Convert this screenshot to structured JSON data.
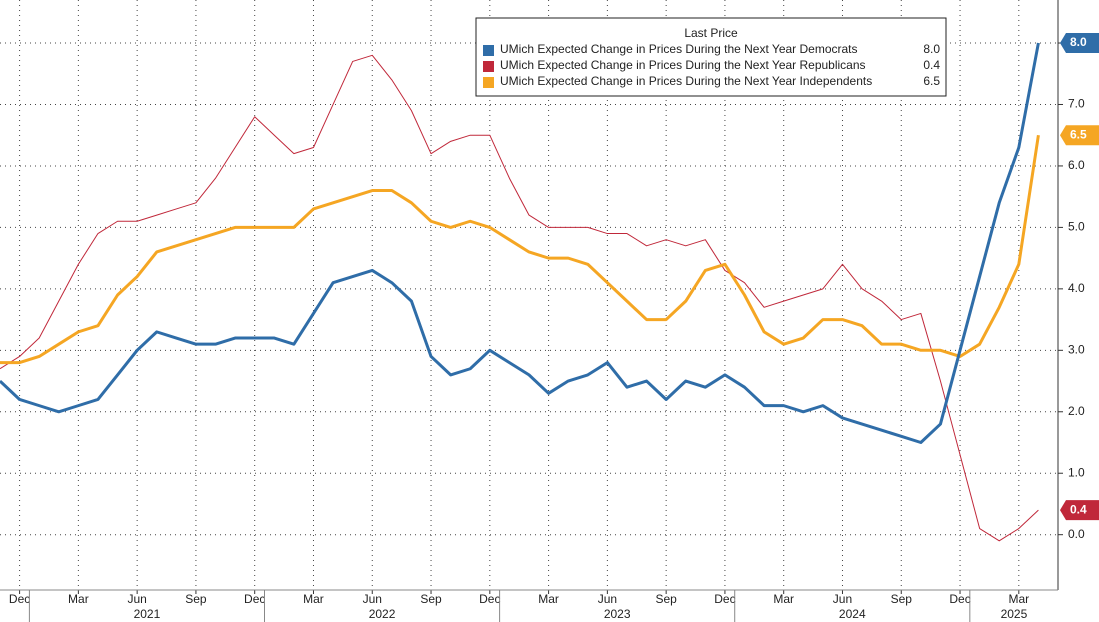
{
  "chart_data": {
    "type": "line",
    "legend_title": "Last Price",
    "x": [
      "2020-11",
      "2020-12",
      "2021-01",
      "2021-02",
      "2021-03",
      "2021-04",
      "2021-05",
      "2021-06",
      "2021-07",
      "2021-08",
      "2021-09",
      "2021-10",
      "2021-11",
      "2021-12",
      "2022-01",
      "2022-02",
      "2022-03",
      "2022-04",
      "2022-05",
      "2022-06",
      "2022-07",
      "2022-08",
      "2022-09",
      "2022-10",
      "2022-11",
      "2022-12",
      "2023-01",
      "2023-02",
      "2023-03",
      "2023-04",
      "2023-05",
      "2023-06",
      "2023-07",
      "2023-08",
      "2023-09",
      "2023-10",
      "2023-11",
      "2023-12",
      "2024-01",
      "2024-02",
      "2024-03",
      "2024-04",
      "2024-05",
      "2024-06",
      "2024-07",
      "2024-08",
      "2024-09",
      "2024-10",
      "2024-11",
      "2024-12",
      "2025-01",
      "2025-02",
      "2025-03",
      "2025-04"
    ],
    "series": [
      {
        "name": "UMich Expected Change in Prices During the Next Year Democrats",
        "color": "#2f6da8",
        "width": 3,
        "last_label": "8.0",
        "values": [
          2.5,
          2.2,
          2.1,
          2.0,
          2.1,
          2.2,
          2.6,
          3.0,
          3.3,
          3.2,
          3.1,
          3.1,
          3.2,
          3.2,
          3.2,
          3.1,
          3.6,
          4.1,
          4.2,
          4.3,
          4.1,
          3.8,
          2.9,
          2.6,
          2.7,
          3.0,
          2.8,
          2.6,
          2.3,
          2.5,
          2.6,
          2.8,
          2.4,
          2.5,
          2.2,
          2.5,
          2.4,
          2.6,
          2.4,
          2.1,
          2.1,
          2.0,
          2.1,
          1.9,
          1.8,
          1.7,
          1.6,
          1.5,
          1.8,
          3.0,
          4.2,
          5.4,
          6.3,
          8.0
        ]
      },
      {
        "name": "UMich Expected Change in Prices During the Next Year Republicans",
        "color": "#c0283a",
        "width": 1,
        "last_label": "0.4",
        "values": [
          2.7,
          2.9,
          3.2,
          3.8,
          4.4,
          4.9,
          5.1,
          5.1,
          5.2,
          5.3,
          5.4,
          5.8,
          6.3,
          6.8,
          6.5,
          6.2,
          6.3,
          7.0,
          7.7,
          7.8,
          7.4,
          6.9,
          6.2,
          6.4,
          6.5,
          6.5,
          5.8,
          5.2,
          5.0,
          5.0,
          5.0,
          4.9,
          4.9,
          4.7,
          4.8,
          4.7,
          4.8,
          4.3,
          4.1,
          3.7,
          3.8,
          3.9,
          4.0,
          4.4,
          4.0,
          3.8,
          3.5,
          3.6,
          2.5,
          1.3,
          0.1,
          -0.1,
          0.1,
          0.4
        ]
      },
      {
        "name": "UMich Expected Change in Prices During the Next Year Independents",
        "color": "#f5a623",
        "width": 3,
        "last_label": "6.5",
        "values": [
          2.8,
          2.8,
          2.9,
          3.1,
          3.3,
          3.4,
          3.9,
          4.2,
          4.6,
          4.7,
          4.8,
          4.9,
          5.0,
          5.0,
          5.0,
          5.0,
          5.3,
          5.4,
          5.5,
          5.6,
          5.6,
          5.4,
          5.1,
          5.0,
          5.1,
          5.0,
          4.8,
          4.6,
          4.5,
          4.5,
          4.4,
          4.1,
          3.8,
          3.5,
          3.5,
          3.8,
          4.3,
          4.4,
          3.9,
          3.3,
          3.1,
          3.2,
          3.5,
          3.5,
          3.4,
          3.1,
          3.1,
          3.0,
          3.0,
          2.9,
          3.1,
          3.7,
          4.4,
          6.5
        ]
      }
    ],
    "xlim": [
      "2020-11",
      "2025-05"
    ],
    "xticks": [
      {
        "value": "2020-12",
        "label": "Dec"
      },
      {
        "value": "2021-03",
        "label": "Mar"
      },
      {
        "value": "2021-06",
        "label": "Jun"
      },
      {
        "value": "2021-09",
        "label": "Sep"
      },
      {
        "value": "2021-12",
        "label": "Dec"
      },
      {
        "value": "2022-03",
        "label": "Mar"
      },
      {
        "value": "2022-06",
        "label": "Jun"
      },
      {
        "value": "2022-09",
        "label": "Sep"
      },
      {
        "value": "2022-12",
        "label": "Dec"
      },
      {
        "value": "2023-03",
        "label": "Mar"
      },
      {
        "value": "2023-06",
        "label": "Jun"
      },
      {
        "value": "2023-09",
        "label": "Sep"
      },
      {
        "value": "2023-12",
        "label": "Dec"
      },
      {
        "value": "2024-03",
        "label": "Mar"
      },
      {
        "value": "2024-06",
        "label": "Jun"
      },
      {
        "value": "2024-09",
        "label": "Sep"
      },
      {
        "value": "2024-12",
        "label": "Dec"
      },
      {
        "value": "2025-03",
        "label": "Mar"
      }
    ],
    "year_ticks": [
      2021,
      2022,
      2023,
      2024,
      2025
    ],
    "ylim": [
      -0.9,
      8.7
    ],
    "yticks": [
      {
        "value": 0,
        "label": "0.0"
      },
      {
        "value": 1,
        "label": "1.0"
      },
      {
        "value": 2,
        "label": "2.0"
      },
      {
        "value": 3,
        "label": "3.0"
      },
      {
        "value": 4,
        "label": "4.0"
      },
      {
        "value": 5,
        "label": "5.0"
      },
      {
        "value": 6,
        "label": "6.0"
      },
      {
        "value": 7,
        "label": "7.0"
      },
      {
        "value": 8,
        "label": "8.0"
      }
    ],
    "grid": true
  }
}
